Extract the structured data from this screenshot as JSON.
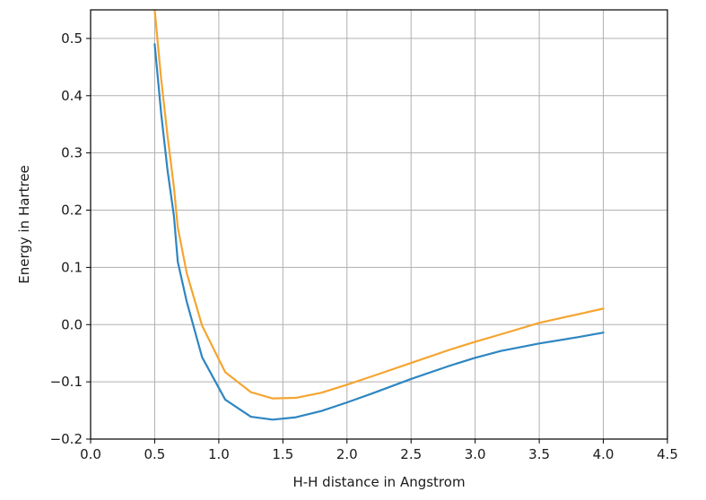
{
  "chart_data": {
    "type": "line",
    "title": "",
    "xlabel": "H-H distance in Angstrom",
    "ylabel": "Energy in Hartree",
    "xlim": [
      0.0,
      4.5
    ],
    "ylim": [
      -0.2,
      0.55
    ],
    "xticks": [
      "0.0",
      "0.5",
      "1.0",
      "1.5",
      "2.0",
      "2.5",
      "3.0",
      "3.5",
      "4.0",
      "4.5"
    ],
    "xtick_values": [
      0.0,
      0.5,
      1.0,
      1.5,
      2.0,
      2.5,
      3.0,
      3.5,
      4.0,
      4.5
    ],
    "yticks": [
      "−0.2",
      "−0.1",
      "0.0",
      "0.1",
      "0.2",
      "0.3",
      "0.4",
      "0.5"
    ],
    "ytick_values": [
      -0.2,
      -0.1,
      0.0,
      0.1,
      0.2,
      0.3,
      0.4,
      0.5
    ],
    "grid": true,
    "series": [
      {
        "color": "#2e86c1",
        "x": [
          0.5,
          0.55,
          0.6,
          0.65,
          0.68,
          0.75,
          0.87,
          1.05,
          1.25,
          1.42,
          1.6,
          1.8,
          2.0,
          2.2,
          2.5,
          2.8,
          3.0,
          3.2,
          3.5,
          3.8,
          4.0
        ],
        "values": [
          0.49,
          0.37,
          0.27,
          0.19,
          0.11,
          0.04,
          -0.057,
          -0.131,
          -0.161,
          -0.166,
          -0.162,
          -0.151,
          -0.136,
          -0.12,
          -0.095,
          -0.072,
          -0.058,
          -0.046,
          -0.033,
          -0.022,
          -0.014
        ]
      },
      {
        "color": "#f5a530",
        "x": [
          0.5,
          0.55,
          0.6,
          0.65,
          0.68,
          0.75,
          0.87,
          1.05,
          1.25,
          1.42,
          1.6,
          1.8,
          2.0,
          2.2,
          2.5,
          2.8,
          3.0,
          3.2,
          3.5,
          3.8,
          4.0
        ],
        "values": [
          0.55,
          0.43,
          0.33,
          0.24,
          0.17,
          0.09,
          -0.002,
          -0.083,
          -0.118,
          -0.129,
          -0.128,
          -0.119,
          -0.105,
          -0.09,
          -0.067,
          -0.044,
          -0.03,
          -0.017,
          0.003,
          0.018,
          0.028
        ]
      }
    ]
  }
}
